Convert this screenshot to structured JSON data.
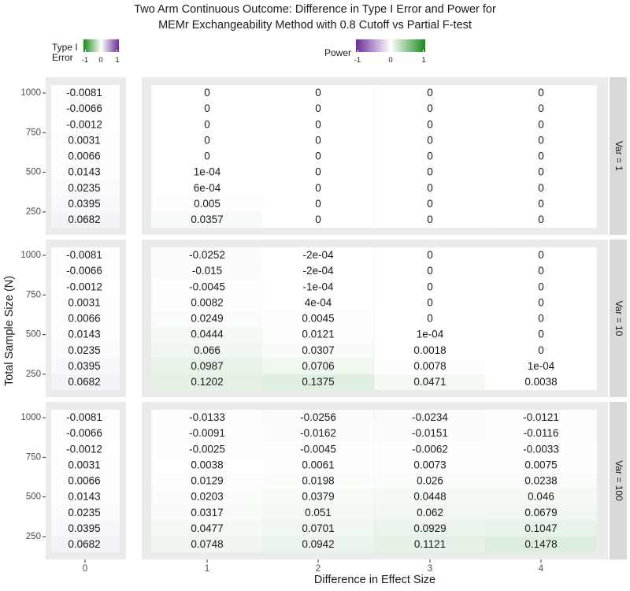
{
  "title": [
    "Two Arm Continuous Outcome: Difference in Type I Error and Power for",
    "MEMr Exchangeability Method with 0.8 Cutoff vs Partial F-test"
  ],
  "legend_type1": {
    "label": [
      "Type I",
      "Error"
    ],
    "ticks": [
      "-1",
      "0",
      "1"
    ],
    "low_color": "#1b8a1b",
    "mid_color": "#ffffff",
    "high_color": "#6a2c9a"
  },
  "legend_power": {
    "label": "Power",
    "ticks": [
      "-1",
      "0",
      "1"
    ],
    "low_color": "#6a2c9a",
    "mid_color": "#ffffff",
    "high_color": "#1b8a1b"
  },
  "chart_data": {
    "type": "heatmap",
    "xlabel": "Difference in Effect Size",
    "ylabel": "Total Sample Size (N)",
    "x_ticks": [
      "0",
      "1",
      "2",
      "3",
      "4"
    ],
    "y_ticks": [
      "250",
      "500",
      "750",
      "1000"
    ],
    "n_values": [
      1000,
      900,
      800,
      700,
      600,
      500,
      400,
      300,
      200
    ],
    "type1_error": [
      "-0.0081",
      "-0.0066",
      "-0.0012",
      "0.0031",
      "0.0066",
      "0.0143",
      "0.0235",
      "0.0395",
      "0.0682"
    ],
    "facets": [
      {
        "label": "Var = 1",
        "power": [
          [
            "0",
            "0",
            "0",
            "0"
          ],
          [
            "0",
            "0",
            "0",
            "0"
          ],
          [
            "0",
            "0",
            "0",
            "0"
          ],
          [
            "0",
            "0",
            "0",
            "0"
          ],
          [
            "0",
            "0",
            "0",
            "0"
          ],
          [
            "1e-04",
            "0",
            "0",
            "0"
          ],
          [
            "6e-04",
            "0",
            "0",
            "0"
          ],
          [
            "0.005",
            "0",
            "0",
            "0"
          ],
          [
            "0.0357",
            "0",
            "0",
            "0"
          ]
        ]
      },
      {
        "label": "Var = 10",
        "power": [
          [
            "-0.0252",
            "-2e-04",
            "0",
            "0"
          ],
          [
            "-0.015",
            "-2e-04",
            "0",
            "0"
          ],
          [
            "-0.0045",
            "-1e-04",
            "0",
            "0"
          ],
          [
            "0.0082",
            "4e-04",
            "0",
            "0"
          ],
          [
            "0.0249",
            "0.0045",
            "0",
            "0"
          ],
          [
            "0.0444",
            "0.0121",
            "1e-04",
            "0"
          ],
          [
            "0.066",
            "0.0307",
            "0.0018",
            "0"
          ],
          [
            "0.0987",
            "0.0706",
            "0.0078",
            "1e-04"
          ],
          [
            "0.1202",
            "0.1375",
            "0.0471",
            "0.0038"
          ]
        ]
      },
      {
        "label": "Var = 100",
        "power": [
          [
            "-0.0133",
            "-0.0256",
            "-0.0234",
            "-0.0121"
          ],
          [
            "-0.0091",
            "-0.0162",
            "-0.0151",
            "-0.0116"
          ],
          [
            "-0.0025",
            "-0.0045",
            "-0.0062",
            "-0.0033"
          ],
          [
            "0.0038",
            "0.0061",
            "0.0073",
            "0.0075"
          ],
          [
            "0.0129",
            "0.0198",
            "0.026",
            "0.0238"
          ],
          [
            "0.0203",
            "0.0379",
            "0.0448",
            "0.046"
          ],
          [
            "0.0317",
            "0.051",
            "0.062",
            "0.0679"
          ],
          [
            "0.0477",
            "0.0701",
            "0.0929",
            "0.1047"
          ],
          [
            "0.0748",
            "0.0942",
            "0.1121",
            "0.1478"
          ]
        ]
      }
    ]
  }
}
